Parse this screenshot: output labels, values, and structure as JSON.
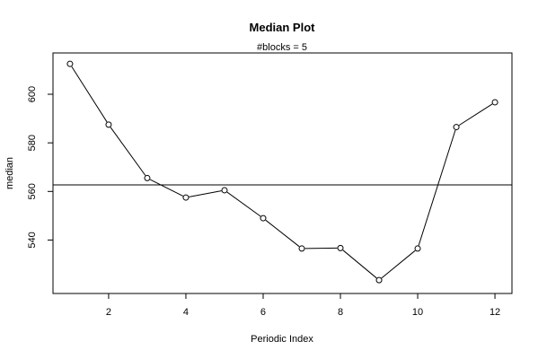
{
  "chart_data": {
    "type": "line",
    "title": "Median Plot",
    "subtitle": "#blocks =  5",
    "xlabel": "Periodic Index",
    "ylabel": "median",
    "x": [
      1,
      2,
      3,
      4,
      5,
      6,
      7,
      8,
      9,
      10,
      11,
      12
    ],
    "y": [
      612.5,
      587.5,
      565.5,
      557.5,
      560.5,
      549,
      536.5,
      536.7,
      523.5,
      536.5,
      586.5,
      596.7
    ],
    "reference_line": 562.7,
    "xlim": [
      0.56,
      12.44
    ],
    "ylim": [
      518,
      617
    ],
    "xticks": [
      2,
      4,
      6,
      8,
      10,
      12
    ],
    "yticks": [
      540,
      560,
      580,
      600
    ],
    "grid": false,
    "legend": "none",
    "line_color": "#000000",
    "point_marker": "open-circle"
  }
}
